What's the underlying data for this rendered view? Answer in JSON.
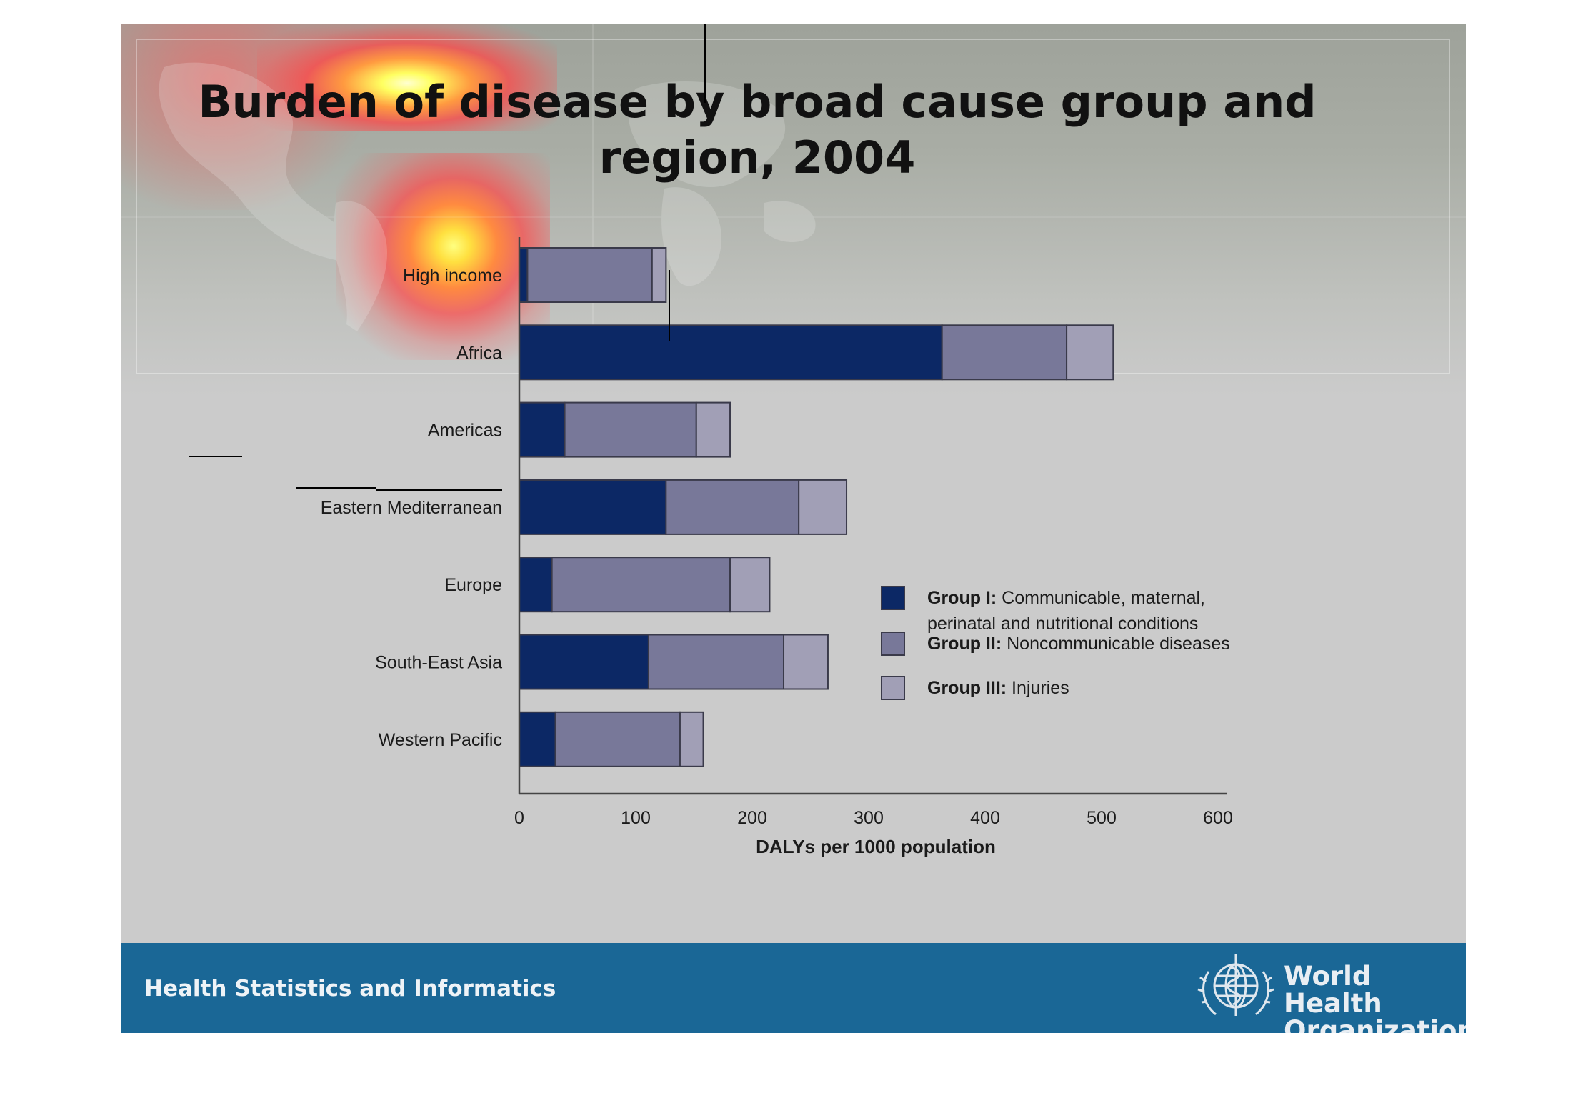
{
  "title": {
    "line1": "Burden of disease by broad cause group and",
    "line2": "region, 2004"
  },
  "footer": {
    "text": "Health Statistics and Informatics",
    "organization_line1": "World Health",
    "organization_line2": "Organization"
  },
  "colors": {
    "group1": "#0c2865",
    "group2": "#787899",
    "group3": "#a19fb6",
    "footer": "#1a6796"
  },
  "chart_data": {
    "type": "bar",
    "orientation": "horizontal",
    "stacked": true,
    "categories": [
      "High income",
      "Africa",
      "Americas",
      "Eastern Mediterranean",
      "Europe",
      "South-East Asia",
      "Western Pacific"
    ],
    "series": [
      {
        "name": "Communicable, maternal, perinatal and nutritional conditions",
        "values": [
          7,
          363,
          39,
          126,
          28,
          111,
          31
        ]
      },
      {
        "name": "Noncommunicable diseases",
        "values": [
          107,
          107,
          113,
          114,
          153,
          116,
          107
        ]
      },
      {
        "name": "Injuries",
        "values": [
          12,
          40,
          29,
          41,
          34,
          38,
          20
        ]
      }
    ],
    "legend": [
      {
        "bold": "Group I:",
        "text": "Communicable, maternal,",
        "text2": "perinatal and nutritional conditions"
      },
      {
        "bold": "Group II:",
        "text": "Noncommunicable diseases"
      },
      {
        "bold": "Group III:",
        "text": "Injuries"
      }
    ],
    "legend_position": "right",
    "xlabel": "DALYs per 1000 population",
    "xlim": [
      0,
      600
    ],
    "xticks": [
      0,
      100,
      200,
      300,
      400,
      500,
      600
    ],
    "grid": false
  }
}
